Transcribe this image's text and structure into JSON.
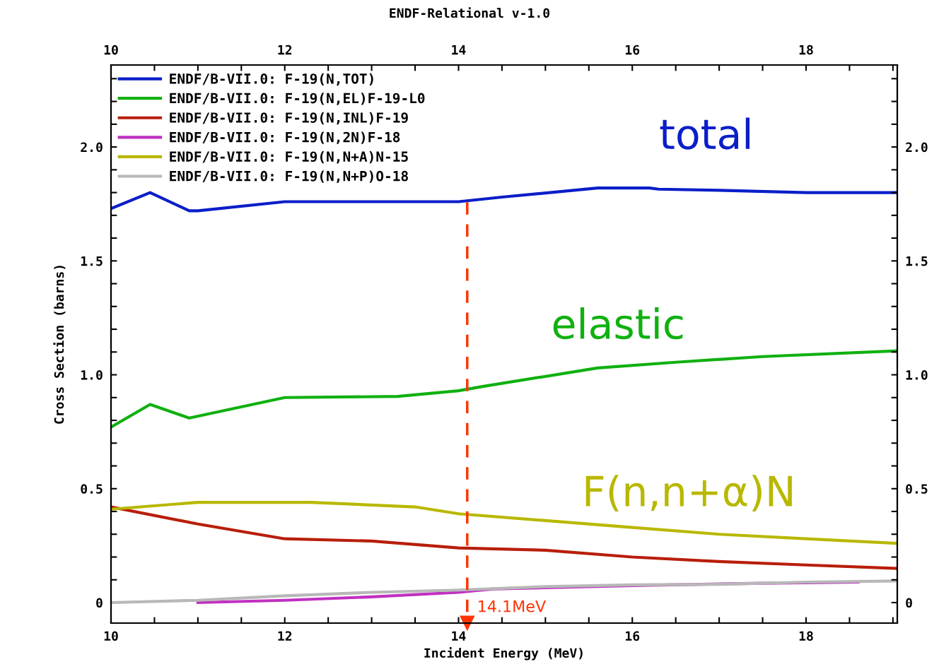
{
  "chart_data": {
    "type": "line",
    "title": "ENDF-Relational v-1.0",
    "xlabel": "Incident Energy (MeV)",
    "ylabel": "Cross Section (barns)",
    "xlim": [
      10,
      19.05
    ],
    "ylim": [
      -0.09,
      2.36
    ],
    "xticks": [
      10,
      {
        "value": 10.5,
        "label": null
      },
      {
        "value": 11,
        "label": null
      },
      {
        "value": 11.5,
        "label": null
      },
      12,
      {
        "value": 12.5,
        "label": null
      },
      {
        "value": 13,
        "label": null
      },
      {
        "value": 13.5,
        "label": null
      },
      14,
      {
        "value": 14.5,
        "label": null
      },
      {
        "value": 15,
        "label": null
      },
      {
        "value": 15.5,
        "label": null
      },
      16,
      {
        "value": 16.5,
        "label": null
      },
      {
        "value": 17,
        "label": null
      },
      {
        "value": 17.5,
        "label": null
      },
      18,
      {
        "value": 18.5,
        "label": null
      },
      {
        "value": 19,
        "label": null
      }
    ],
    "yticks": [
      {
        "value": 0,
        "label": "0"
      },
      {
        "value": 0.1,
        "label": null
      },
      {
        "value": 0.2,
        "label": null
      },
      {
        "value": 0.3,
        "label": null
      },
      {
        "value": 0.4,
        "label": null
      },
      0.5,
      {
        "value": 0.6,
        "label": null
      },
      {
        "value": 0.7,
        "label": null
      },
      {
        "value": 0.8,
        "label": null
      },
      {
        "value": 0.9,
        "label": null
      },
      {
        "value": 1.0,
        "label": "1.0"
      },
      {
        "value": 1.1,
        "label": null
      },
      {
        "value": 1.2,
        "label": null
      },
      {
        "value": 1.3,
        "label": null
      },
      {
        "value": 1.4,
        "label": null
      },
      1.5,
      {
        "value": 1.6,
        "label": null
      },
      {
        "value": 1.7,
        "label": null
      },
      {
        "value": 1.8,
        "label": null
      },
      {
        "value": 1.9,
        "label": null
      },
      {
        "value": 2.0,
        "label": "2.0"
      },
      {
        "value": 2.1,
        "label": null
      },
      {
        "value": 2.2,
        "label": null
      },
      {
        "value": 2.3,
        "label": null
      }
    ],
    "x2lim": [
      10,
      19.05
    ],
    "x2ticks": [
      10,
      {
        "value": 10.5,
        "label": null
      },
      {
        "value": 11,
        "label": null
      },
      {
        "value": 11.5,
        "label": null
      },
      12,
      {
        "value": 12.5,
        "label": null
      },
      {
        "value": 13,
        "label": null
      },
      {
        "value": 13.5,
        "label": null
      },
      14,
      {
        "value": 14.5,
        "label": null
      },
      {
        "value": 15,
        "label": null
      },
      {
        "value": 15.5,
        "label": null
      },
      16,
      {
        "value": 16.5,
        "label": null
      },
      {
        "value": 17,
        "label": null
      },
      {
        "value": 17.5,
        "label": null
      },
      18,
      {
        "value": 18.5,
        "label": null
      },
      {
        "value": 19,
        "label": null
      }
    ],
    "y2lim": [
      -0.09,
      2.36
    ],
    "y2ticks": [
      {
        "value": 0,
        "label": "0"
      },
      {
        "value": 0.1,
        "label": null
      },
      {
        "value": 0.2,
        "label": null
      },
      {
        "value": 0.3,
        "label": null
      },
      {
        "value": 0.4,
        "label": null
      },
      0.5,
      {
        "value": 0.6,
        "label": null
      },
      {
        "value": 0.7,
        "label": null
      },
      {
        "value": 0.8,
        "label": null
      },
      {
        "value": 0.9,
        "label": null
      },
      {
        "value": 1.0,
        "label": "1.0"
      },
      {
        "value": 1.1,
        "label": null
      },
      {
        "value": 1.2,
        "label": null
      },
      {
        "value": 1.3,
        "label": null
      },
      {
        "value": 1.4,
        "label": null
      },
      1.5,
      {
        "value": 1.6,
        "label": null
      },
      {
        "value": 1.7,
        "label": null
      },
      {
        "value": 1.8,
        "label": null
      },
      {
        "value": 1.9,
        "label": null
      },
      {
        "value": 2.0,
        "label": "2.0"
      },
      {
        "value": 2.1,
        "label": null
      },
      {
        "value": 2.2,
        "label": null
      },
      {
        "value": 2.3,
        "label": null
      }
    ],
    "series": [
      {
        "name": "ENDF/B-VII.0: F-19(N,TOT)",
        "color": "#0a1ec8",
        "x": [
          10,
          10.45,
          10.9,
          11.0,
          12.0,
          14.0,
          14.5,
          15.6,
          16.2,
          16.3,
          17.0,
          18.0,
          19.05
        ],
        "values": [
          1.73,
          1.8,
          1.72,
          1.72,
          1.76,
          1.76,
          1.78,
          1.82,
          1.82,
          1.815,
          1.81,
          1.8,
          1.8
        ]
      },
      {
        "name": "ENDF/B-VII.0: F-19(N,EL)F-19-L0",
        "color": "#10b010",
        "x": [
          10,
          10.45,
          10.9,
          12.0,
          13.3,
          14.0,
          14.3,
          15.6,
          16.5,
          17.5,
          19.05
        ],
        "values": [
          0.77,
          0.87,
          0.81,
          0.9,
          0.905,
          0.93,
          0.95,
          1.03,
          1.055,
          1.08,
          1.105
        ]
      },
      {
        "name": "ENDF/B-VII.0: F-19(N,INL)F-19",
        "color": "#b81e0a",
        "x": [
          10,
          11.0,
          12.0,
          13.0,
          14.0,
          15.0,
          16.0,
          17.0,
          18.0,
          19.05
        ],
        "values": [
          0.42,
          0.345,
          0.28,
          0.27,
          0.24,
          0.23,
          0.2,
          0.18,
          0.165,
          0.15
        ]
      },
      {
        "name": "ENDF/B-VII.0: F-19(N,2N)F-18",
        "color": "#c030c0",
        "x": [
          11.0,
          12.0,
          13.0,
          14.0,
          14.4,
          15.5,
          16.0,
          17.5,
          18.6
        ],
        "values": [
          0.0,
          0.01,
          0.025,
          0.045,
          0.06,
          0.07,
          0.075,
          0.085,
          0.09
        ]
      },
      {
        "name": "ENDF/B-VII.0: F-19(N,N+A)N-15",
        "color": "#b8b800",
        "x": [
          10,
          11.0,
          12.3,
          13.5,
          14.0,
          15.0,
          16.0,
          17.0,
          18.0,
          19.05
        ],
        "values": [
          0.41,
          0.44,
          0.44,
          0.42,
          0.39,
          0.36,
          0.33,
          0.3,
          0.28,
          0.26
        ]
      },
      {
        "name": "ENDF/B-VII.0: F-19(N,N+P)O-18",
        "color": "#b8b8b8",
        "x": [
          10,
          11.0,
          12.0,
          13.0,
          14.0,
          15.0,
          16.0,
          17.0,
          18.0,
          19.05
        ],
        "values": [
          0.0,
          0.01,
          0.03,
          0.045,
          0.055,
          0.07,
          0.078,
          0.08,
          0.09,
          0.095
        ]
      }
    ],
    "ref_lines": [
      {
        "axis": "x",
        "value": 14.1,
        "color": "#ff3300",
        "line_style": "dashed"
      }
    ],
    "annotations": [
      "total",
      "elastic",
      "F(n,n+α)N",
      {
        "text": "14.1MeV",
        "x": 14.1,
        "y": -0.09
      }
    ],
    "legend": "top left",
    "grid": false,
    "marker": "none",
    "line_style": "solid"
  }
}
